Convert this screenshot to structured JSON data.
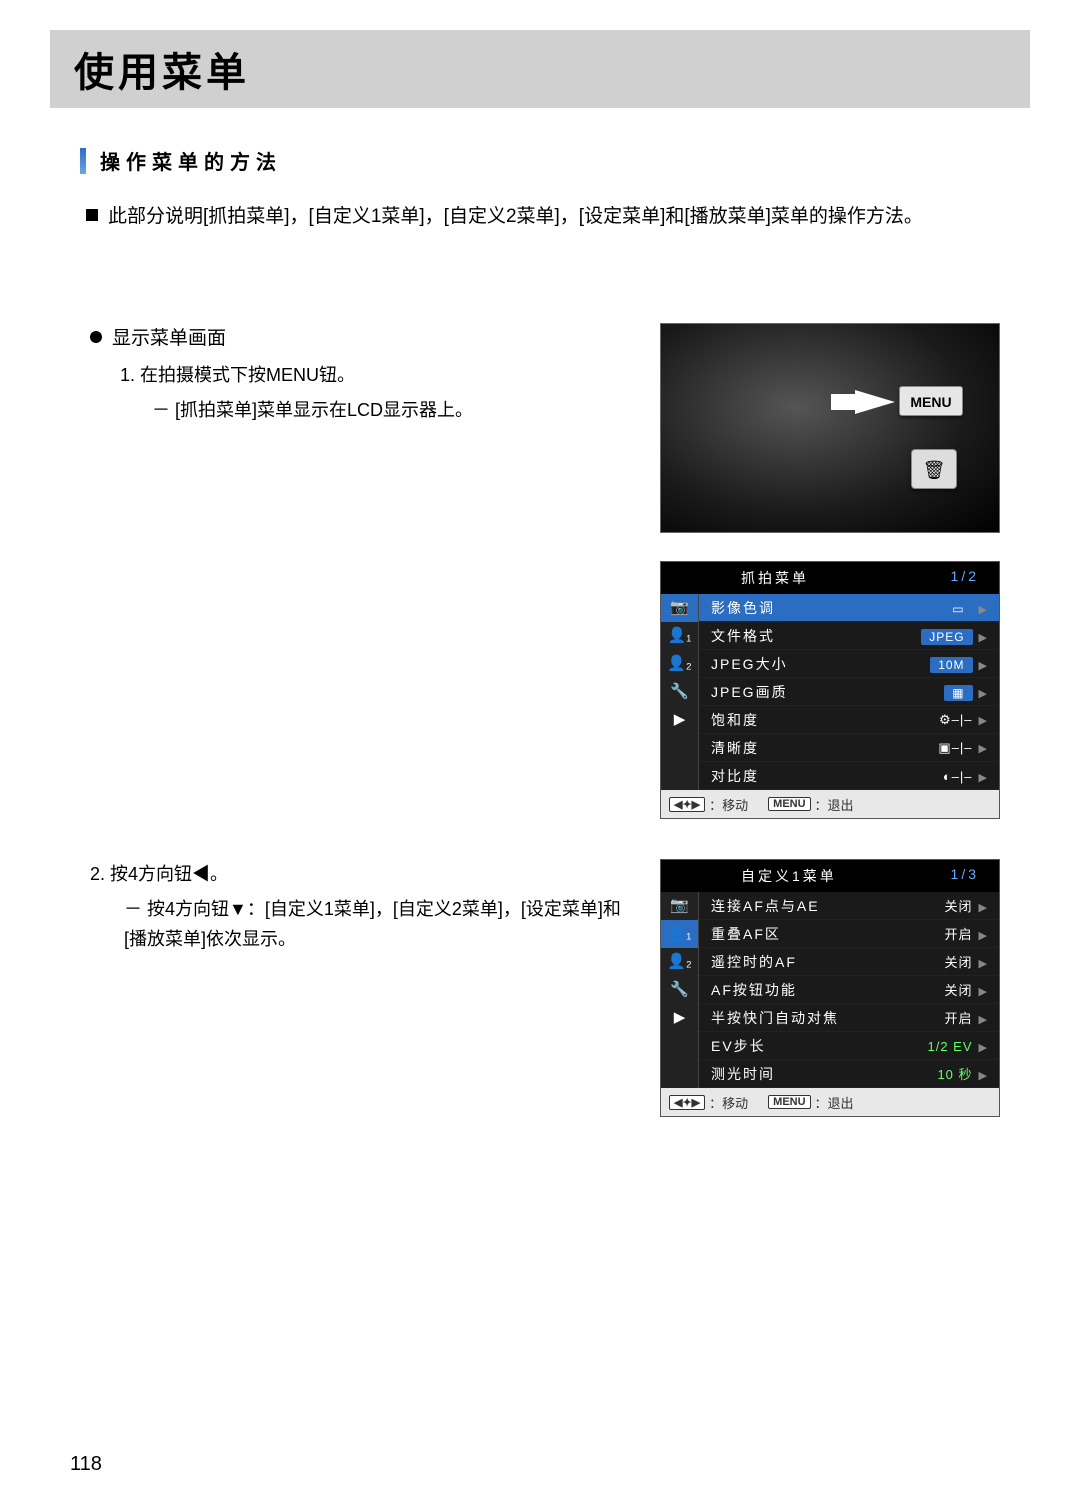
{
  "pageTitle": "使用菜单",
  "sectionTitle": "操作菜单的方法",
  "intro": "此部分说明[抓拍菜单]，[自定义1菜单]，[自定义2菜单]，[设定菜单]和[播放菜单]菜单的操作方法。",
  "sub1": {
    "heading": "显示菜单画面",
    "step1": "1. 在拍摄模式下按MENU钮。",
    "step1sub": "－ [抓拍菜单]菜单显示在LCD显示器上。"
  },
  "sub2": {
    "step2": "2. 按4方向钮◀。",
    "step2sub": "－ 按4方向钮▼：[自定义1菜单]，[自定义2菜单]，[设定菜单]和[播放菜单]依次显示。"
  },
  "camera": {
    "menuBtn": "MENU",
    "trashGlyph": "🗑"
  },
  "lcd1": {
    "title": "抓拍菜单",
    "page": "1/2",
    "tabs": [
      "📷",
      "👤₁",
      "👤₂",
      "🔧",
      "▶"
    ],
    "rows": [
      {
        "label": "影像色调",
        "value": "▭",
        "pill": true
      },
      {
        "label": "文件格式",
        "value": "JPEG",
        "pill": true
      },
      {
        "label": "JPEG大小",
        "value": "10M",
        "pill": true
      },
      {
        "label": "JPEG画质",
        "value": "▦",
        "pill": true
      },
      {
        "label": "饱和度",
        "value": "⚙–|–",
        "pill": false
      },
      {
        "label": "清晰度",
        "value": "▣–|–",
        "pill": false
      },
      {
        "label": "对比度",
        "value": "◐–|–",
        "pill": false
      }
    ],
    "footer": {
      "navKey": "◀✦▶",
      "navText": "：移动",
      "menuKey": "MENU",
      "menuText": "：退出"
    }
  },
  "lcd2": {
    "title": "自定义1菜单",
    "page": "1/3",
    "tabs": [
      "📷",
      "👤₁",
      "👤₂",
      "🔧",
      "▶"
    ],
    "rows": [
      {
        "label": "连接AF点与AE",
        "value": "关闭"
      },
      {
        "label": "重叠AF区",
        "value": "开启"
      },
      {
        "label": "遥控时的AF",
        "value": "关闭"
      },
      {
        "label": "AF按钮功能",
        "value": "关闭"
      },
      {
        "label": "半按快门自动对焦",
        "value": "开启"
      },
      {
        "label": "EV步长",
        "value": "1/2 EV",
        "green": true
      },
      {
        "label": "测光时间",
        "value": "10 秒",
        "green": true
      }
    ],
    "footer": {
      "navKey": "◀✦▶",
      "navText": "：移动",
      "menuKey": "MENU",
      "menuText": "：退出"
    }
  },
  "pageNumber": "118"
}
